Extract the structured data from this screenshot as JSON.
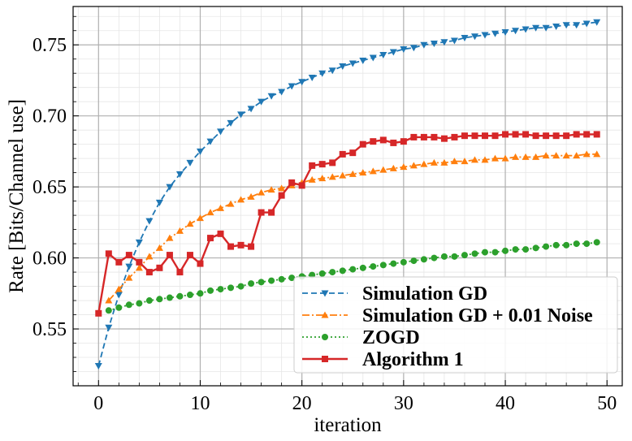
{
  "chart_data": {
    "type": "line",
    "title": "",
    "xlabel": "iteration",
    "ylabel": "Rate [Bits/Channel use]",
    "xlim": [
      -2.5,
      51.5
    ],
    "ylim": [
      0.51,
      0.777
    ],
    "xticks": [
      0,
      10,
      20,
      30,
      40,
      50
    ],
    "yticks": [
      0.55,
      0.6,
      0.65,
      0.7,
      0.75
    ],
    "xtick_labels": [
      "0",
      "10",
      "20",
      "30",
      "40",
      "50"
    ],
    "ytick_labels": [
      "0.55",
      "0.60",
      "0.65",
      "0.70",
      "0.75"
    ],
    "grid": true,
    "minor_grid": true,
    "legend_position": "lower-right",
    "series": [
      {
        "name": "Simulation GD",
        "color": "#1f77b4",
        "line_style": "dashed",
        "marker": "triangle-down",
        "x": [
          0,
          1,
          2,
          3,
          4,
          5,
          6,
          7,
          8,
          9,
          10,
          11,
          12,
          13,
          14,
          15,
          16,
          17,
          18,
          19,
          20,
          21,
          22,
          23,
          24,
          25,
          26,
          27,
          28,
          29,
          30,
          31,
          32,
          33,
          34,
          35,
          36,
          37,
          38,
          39,
          40,
          41,
          42,
          43,
          44,
          45,
          46,
          47,
          48,
          49
        ],
        "values": [
          0.524,
          0.551,
          0.574,
          0.594,
          0.611,
          0.626,
          0.639,
          0.65,
          0.659,
          0.667,
          0.675,
          0.682,
          0.689,
          0.695,
          0.701,
          0.705,
          0.71,
          0.714,
          0.717,
          0.721,
          0.724,
          0.727,
          0.73,
          0.732,
          0.735,
          0.737,
          0.739,
          0.741,
          0.743,
          0.745,
          0.747,
          0.748,
          0.75,
          0.751,
          0.752,
          0.753,
          0.755,
          0.756,
          0.757,
          0.758,
          0.759,
          0.76,
          0.761,
          0.762,
          0.762,
          0.763,
          0.764,
          0.764,
          0.765,
          0.766
        ]
      },
      {
        "name": "Simulation GD + 0.01 Noise",
        "color": "#ff7f0e",
        "line_style": "dashdot",
        "marker": "triangle-up",
        "x": [
          1,
          2,
          3,
          4,
          5,
          6,
          7,
          8,
          9,
          10,
          11,
          12,
          13,
          14,
          15,
          16,
          17,
          18,
          19,
          20,
          21,
          22,
          23,
          24,
          25,
          26,
          27,
          28,
          29,
          30,
          31,
          32,
          33,
          34,
          35,
          36,
          37,
          38,
          39,
          40,
          41,
          42,
          43,
          44,
          45,
          46,
          47,
          48,
          49
        ],
        "values": [
          0.57,
          0.578,
          0.586,
          0.593,
          0.601,
          0.607,
          0.614,
          0.619,
          0.624,
          0.628,
          0.632,
          0.635,
          0.638,
          0.641,
          0.643,
          0.646,
          0.648,
          0.649,
          0.651,
          0.653,
          0.655,
          0.656,
          0.657,
          0.658,
          0.659,
          0.66,
          0.661,
          0.662,
          0.663,
          0.664,
          0.665,
          0.666,
          0.667,
          0.667,
          0.668,
          0.668,
          0.669,
          0.669,
          0.67,
          0.67,
          0.671,
          0.671,
          0.671,
          0.672,
          0.672,
          0.672,
          0.672,
          0.673,
          0.673
        ]
      },
      {
        "name": "ZOGD",
        "color": "#2ca02c",
        "line_style": "dotted",
        "marker": "circle",
        "x": [
          1,
          2,
          3,
          4,
          5,
          6,
          7,
          8,
          9,
          10,
          11,
          12,
          13,
          14,
          15,
          16,
          17,
          18,
          19,
          20,
          21,
          22,
          23,
          24,
          25,
          26,
          27,
          28,
          29,
          30,
          31,
          32,
          33,
          34,
          35,
          36,
          37,
          38,
          39,
          40,
          41,
          42,
          43,
          44,
          45,
          46,
          47,
          48,
          49
        ],
        "values": [
          0.563,
          0.565,
          0.567,
          0.568,
          0.57,
          0.571,
          0.572,
          0.573,
          0.574,
          0.575,
          0.577,
          0.578,
          0.579,
          0.58,
          0.582,
          0.583,
          0.584,
          0.585,
          0.586,
          0.587,
          0.588,
          0.589,
          0.59,
          0.591,
          0.592,
          0.593,
          0.594,
          0.595,
          0.596,
          0.597,
          0.598,
          0.599,
          0.6,
          0.601,
          0.601,
          0.602,
          0.603,
          0.604,
          0.604,
          0.605,
          0.606,
          0.606,
          0.607,
          0.608,
          0.609,
          0.609,
          0.61,
          0.61,
          0.611
        ]
      },
      {
        "name": "Algorithm 1",
        "color": "#d62728",
        "line_style": "solid",
        "marker": "square",
        "x": [
          0,
          1,
          2,
          3,
          4,
          5,
          6,
          7,
          8,
          9,
          10,
          11,
          12,
          13,
          14,
          15,
          16,
          17,
          18,
          19,
          20,
          21,
          22,
          23,
          24,
          25,
          26,
          27,
          28,
          29,
          30,
          31,
          32,
          33,
          34,
          35,
          36,
          37,
          38,
          39,
          40,
          41,
          42,
          43,
          44,
          45,
          46,
          47,
          48,
          49
        ],
        "values": [
          0.561,
          0.603,
          0.597,
          0.602,
          0.597,
          0.59,
          0.593,
          0.602,
          0.59,
          0.602,
          0.596,
          0.614,
          0.617,
          0.608,
          0.609,
          0.608,
          0.632,
          0.632,
          0.644,
          0.653,
          0.651,
          0.665,
          0.666,
          0.667,
          0.673,
          0.674,
          0.68,
          0.682,
          0.683,
          0.681,
          0.682,
          0.685,
          0.685,
          0.685,
          0.684,
          0.685,
          0.686,
          0.686,
          0.686,
          0.686,
          0.687,
          0.687,
          0.687,
          0.686,
          0.686,
          0.686,
          0.686,
          0.687,
          0.687,
          0.687
        ]
      }
    ]
  }
}
